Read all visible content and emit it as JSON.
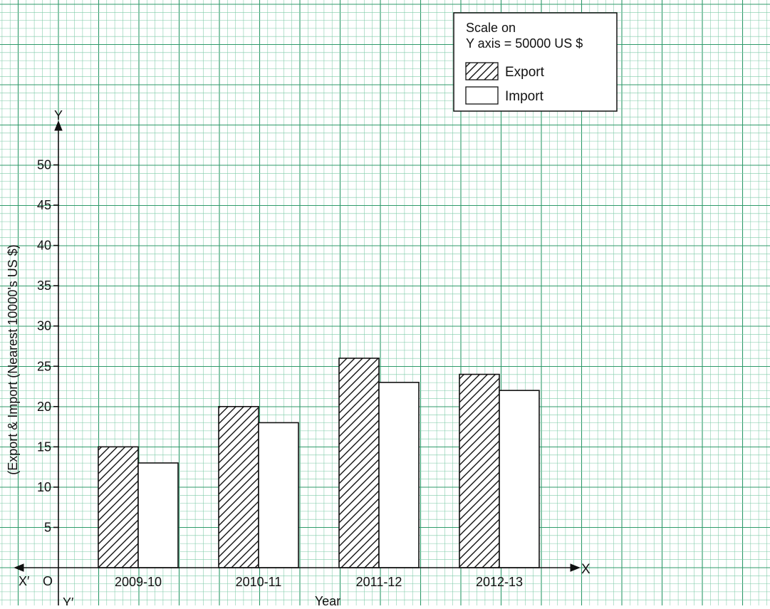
{
  "colors": {
    "grid_fine": "#7dcaa7",
    "grid_major": "#2f9a6a",
    "background": "#ffffff",
    "ink": "#111111"
  },
  "chart_data": {
    "type": "bar",
    "categories": [
      "2009-10",
      "2010-11",
      "2011-12",
      "2012-13"
    ],
    "series": [
      {
        "name": "Export",
        "values": [
          15,
          20,
          26,
          24
        ],
        "pattern": "diagonal-hatch"
      },
      {
        "name": "Import",
        "values": [
          13,
          18,
          23,
          22
        ],
        "pattern": "none"
      }
    ],
    "y_ticks": [
      5,
      10,
      15,
      20,
      25,
      30,
      35,
      40,
      45,
      50
    ],
    "ylim": [
      0,
      55
    ],
    "xlabel": "Year",
    "ylabel": "(Export & Import (Nearest 10000's US $)",
    "axis_names": {
      "x": "X",
      "x_neg": "X′",
      "y": "Y",
      "y_neg": "Y′",
      "origin": "O"
    },
    "grid": true,
    "legend": {
      "placement": "top-right",
      "scale_line1": "Scale on",
      "scale_line2": "Y axis = 50000 US $"
    }
  }
}
